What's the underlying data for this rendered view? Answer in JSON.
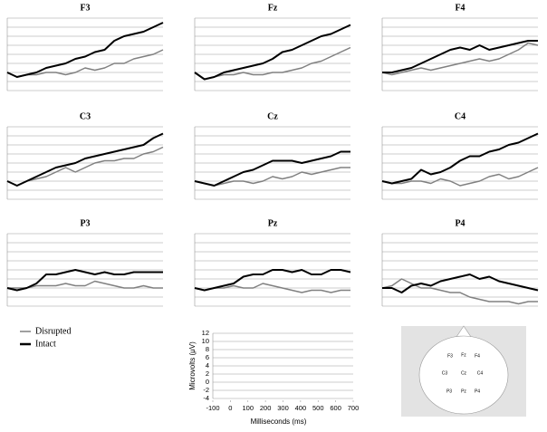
{
  "chart_data": [
    {
      "type": "line",
      "title": "F3",
      "x": [
        -100,
        -50,
        0,
        50,
        100,
        150,
        200,
        250,
        300,
        350,
        400,
        450,
        500,
        550,
        600,
        650,
        700
      ],
      "xlim": [
        -100,
        700
      ],
      "ylim": [
        -4,
        12
      ],
      "yticks": [
        -4,
        -2,
        0,
        2,
        4,
        6,
        8,
        10,
        12
      ],
      "grid": true,
      "series": [
        {
          "name": "Disrupted",
          "color": "#808080",
          "values": [
            0,
            -1,
            -0.5,
            -0.5,
            0,
            0,
            -0.5,
            0,
            1,
            0.5,
            1,
            2,
            2,
            3,
            3.5,
            4,
            5
          ]
        },
        {
          "name": "Intact",
          "color": "#000000",
          "values": [
            0,
            -1,
            -0.5,
            0,
            1,
            1.5,
            2,
            3,
            3.5,
            4.5,
            5,
            7,
            8,
            8.5,
            9,
            10,
            11
          ]
        }
      ]
    },
    {
      "type": "line",
      "title": "Fz",
      "x": [
        -100,
        -50,
        0,
        50,
        100,
        150,
        200,
        250,
        300,
        350,
        400,
        450,
        500,
        550,
        600,
        650,
        700
      ],
      "xlim": [
        -100,
        700
      ],
      "ylim": [
        -4,
        12
      ],
      "yticks": [
        -4,
        -2,
        0,
        2,
        4,
        6,
        8,
        10,
        12
      ],
      "grid": true,
      "series": [
        {
          "name": "Disrupted",
          "color": "#808080",
          "values": [
            0,
            -1.5,
            -1,
            -0.5,
            -0.5,
            0,
            -0.5,
            -0.5,
            0,
            0,
            0.5,
            1,
            2,
            2.5,
            3.5,
            4.5,
            5.5
          ]
        },
        {
          "name": "Intact",
          "color": "#000000",
          "values": [
            0,
            -1.5,
            -1,
            0,
            0.5,
            1,
            1.5,
            2,
            3,
            4.5,
            5,
            6,
            7,
            8,
            8.5,
            9.5,
            10.5
          ]
        }
      ]
    },
    {
      "type": "line",
      "title": "F4",
      "x": [
        -100,
        -50,
        0,
        50,
        100,
        150,
        200,
        250,
        300,
        350,
        400,
        450,
        500,
        550,
        600,
        650,
        700
      ],
      "xlim": [
        -100,
        700
      ],
      "ylim": [
        -4,
        12
      ],
      "yticks": [
        -4,
        -2,
        0,
        2,
        4,
        6,
        8,
        10,
        12
      ],
      "grid": true,
      "series": [
        {
          "name": "Disrupted",
          "color": "#808080",
          "values": [
            0,
            -0.5,
            0,
            0.5,
            1,
            0.5,
            1,
            1.5,
            2,
            2.5,
            3,
            2.5,
            3,
            4,
            5,
            6.5,
            6
          ]
        },
        {
          "name": "Intact",
          "color": "#000000",
          "values": [
            0,
            0,
            0.5,
            1,
            2,
            3,
            4,
            5,
            5.5,
            5,
            6,
            5,
            5.5,
            6,
            6.5,
            7,
            7
          ]
        }
      ]
    },
    {
      "type": "line",
      "title": "C3",
      "x": [
        -100,
        -50,
        0,
        50,
        100,
        150,
        200,
        250,
        300,
        350,
        400,
        450,
        500,
        550,
        600,
        650,
        700
      ],
      "xlim": [
        -100,
        700
      ],
      "ylim": [
        -4,
        12
      ],
      "yticks": [
        -4,
        -2,
        0,
        2,
        4,
        6,
        8,
        10,
        12
      ],
      "grid": true,
      "series": [
        {
          "name": "Disrupted",
          "color": "#808080",
          "values": [
            0,
            -1,
            0,
            0.5,
            1,
            2,
            3,
            2,
            3,
            4,
            4.5,
            4.5,
            5,
            5,
            6,
            6.5,
            7.5
          ]
        },
        {
          "name": "Intact",
          "color": "#000000",
          "values": [
            0,
            -1,
            0,
            1,
            2,
            3,
            3.5,
            4,
            5,
            5.5,
            6,
            6.5,
            7,
            7.5,
            8,
            9.5,
            10.5
          ]
        }
      ]
    },
    {
      "type": "line",
      "title": "Cz",
      "x": [
        -100,
        -50,
        0,
        50,
        100,
        150,
        200,
        250,
        300,
        350,
        400,
        450,
        500,
        550,
        600,
        650,
        700
      ],
      "xlim": [
        -100,
        700
      ],
      "ylim": [
        -4,
        12
      ],
      "yticks": [
        -4,
        -2,
        0,
        2,
        4,
        6,
        8,
        10,
        12
      ],
      "grid": true,
      "series": [
        {
          "name": "Disrupted",
          "color": "#808080",
          "values": [
            0,
            -0.5,
            -1,
            -0.5,
            0,
            0,
            -0.5,
            0,
            1,
            0.5,
            1,
            2,
            1.5,
            2,
            2.5,
            3,
            3
          ]
        },
        {
          "name": "Intact",
          "color": "#000000",
          "values": [
            0,
            -0.5,
            -1,
            0,
            1,
            2,
            2.5,
            3.5,
            4.5,
            4.5,
            4.5,
            4,
            4.5,
            5,
            5.5,
            6.5,
            6.5
          ]
        }
      ]
    },
    {
      "type": "line",
      "title": "C4",
      "x": [
        -100,
        -50,
        0,
        50,
        100,
        150,
        200,
        250,
        300,
        350,
        400,
        450,
        500,
        550,
        600,
        650,
        700
      ],
      "xlim": [
        -100,
        700
      ],
      "ylim": [
        -4,
        12
      ],
      "yticks": [
        -4,
        -2,
        0,
        2,
        4,
        6,
        8,
        10,
        12
      ],
      "grid": true,
      "series": [
        {
          "name": "Disrupted",
          "color": "#808080",
          "values": [
            0,
            -0.5,
            -0.5,
            0,
            0,
            -0.5,
            0.5,
            0,
            -1,
            -0.5,
            0,
            1,
            1.5,
            0.5,
            1,
            2,
            3
          ]
        },
        {
          "name": "Intact",
          "color": "#000000",
          "values": [
            0,
            -0.5,
            0,
            0.5,
            2.5,
            1.5,
            2,
            3,
            4.5,
            5.5,
            5.5,
            6.5,
            7,
            8,
            8.5,
            9.5,
            10.5
          ]
        }
      ]
    },
    {
      "type": "line",
      "title": "P3",
      "x": [
        -100,
        -50,
        0,
        50,
        100,
        150,
        200,
        250,
        300,
        350,
        400,
        450,
        500,
        550,
        600,
        650,
        700
      ],
      "xlim": [
        -100,
        700
      ],
      "ylim": [
        -4,
        12
      ],
      "yticks": [
        -4,
        -2,
        0,
        2,
        4,
        6,
        8,
        10,
        12
      ],
      "grid": true,
      "series": [
        {
          "name": "Disrupted",
          "color": "#808080",
          "values": [
            0,
            0,
            0,
            0.5,
            0.5,
            0.5,
            1,
            0.5,
            0.5,
            1.5,
            1,
            0.5,
            0,
            0,
            0.5,
            0,
            0
          ]
        },
        {
          "name": "Intact",
          "color": "#000000",
          "values": [
            0,
            -0.5,
            0,
            1,
            3,
            3,
            3.5,
            4,
            3.5,
            3,
            3.5,
            3,
            3,
            3.5,
            3.5,
            3.5,
            3.5
          ]
        }
      ]
    },
    {
      "type": "line",
      "title": "Pz",
      "x": [
        -100,
        -50,
        0,
        50,
        100,
        150,
        200,
        250,
        300,
        350,
        400,
        450,
        500,
        550,
        600,
        650,
        700
      ],
      "xlim": [
        -100,
        700
      ],
      "ylim": [
        -4,
        12
      ],
      "yticks": [
        -4,
        -2,
        0,
        2,
        4,
        6,
        8,
        10,
        12
      ],
      "grid": true,
      "series": [
        {
          "name": "Disrupted",
          "color": "#808080",
          "values": [
            0,
            -0.5,
            0,
            0,
            0.5,
            0,
            0,
            1,
            0.5,
            0,
            -0.5,
            -1,
            -0.5,
            -0.5,
            -1,
            -0.5,
            -0.5
          ]
        },
        {
          "name": "Intact",
          "color": "#000000",
          "values": [
            0,
            -0.5,
            0,
            0.5,
            1,
            2.5,
            3,
            3,
            4,
            4,
            3.5,
            4,
            3,
            3,
            4,
            4,
            3.5
          ]
        }
      ]
    },
    {
      "type": "line",
      "title": "P4",
      "x": [
        -100,
        -50,
        0,
        50,
        100,
        150,
        200,
        250,
        300,
        350,
        400,
        450,
        500,
        550,
        600,
        650,
        700
      ],
      "xlim": [
        -100,
        700
      ],
      "ylim": [
        -4,
        12
      ],
      "yticks": [
        -4,
        -2,
        0,
        2,
        4,
        6,
        8,
        10,
        12
      ],
      "grid": true,
      "series": [
        {
          "name": "Disrupted",
          "color": "#808080",
          "values": [
            0,
            0.5,
            2,
            1,
            0,
            0,
            -0.5,
            -1,
            -1,
            -2,
            -2.5,
            -3,
            -3,
            -3,
            -3.5,
            -3,
            -3
          ]
        },
        {
          "name": "Intact",
          "color": "#000000",
          "values": [
            0,
            0,
            -1,
            0.5,
            1,
            0.5,
            1.5,
            2,
            2.5,
            3,
            2,
            2.5,
            1.5,
            1,
            0.5,
            0,
            -0.5
          ]
        }
      ]
    },
    {
      "type": "axes",
      "xlabel": "Milliseconds (ms)",
      "ylabel": "Microvolts (μV)",
      "xlim": [
        -100,
        700
      ],
      "ylim": [
        -4,
        12
      ],
      "xticks": [
        -100,
        0,
        100,
        200,
        300,
        400,
        500,
        600,
        700
      ],
      "yticks": [
        12,
        10,
        8,
        6,
        4,
        2,
        0,
        -2,
        -4
      ],
      "grid": true
    }
  ],
  "head": {
    "electrodes": [
      "F3",
      "Fz",
      "F4",
      "C3",
      "Cz",
      "C4",
      "P3",
      "Pz",
      "P4"
    ]
  }
}
